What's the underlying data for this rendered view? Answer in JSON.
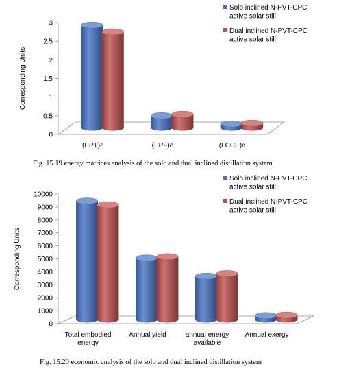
{
  "colors": {
    "series1": "#4472c4",
    "series2": "#c0504d"
  },
  "chart_data": [
    {
      "type": "bar",
      "caption": "Fig. 15.19 energy matrices analysis of the solo and dual inclined distillation system",
      "ylabel": "Corresponding Units",
      "categories": [
        "(EPT)e",
        "(EPF)e",
        "(LCCE)e"
      ],
      "ylim": [
        0,
        3
      ],
      "yticks": [
        "0",
        "0.5",
        "1",
        "1.5",
        "2",
        "2.5",
        "3"
      ],
      "legend_position": "top-right",
      "series": [
        {
          "name": "Solo inclined N-PVT-CPC active solar still",
          "legend_lines": [
            "Solo inclined N-PVT-CPC",
            "active solar still"
          ],
          "values": [
            2.75,
            0.32,
            0.1
          ]
        },
        {
          "name": "Dual inclined N-PVT-CPC active solar still",
          "legend_lines": [
            "Dual inclined N-PVT-CPC",
            "active solar still"
          ],
          "values": [
            2.57,
            0.36,
            0.12
          ]
        }
      ]
    },
    {
      "type": "bar",
      "caption": "Fig. 15.20 economic analysis of the solo and dual inclined distillation system",
      "ylabel": "Corresponding Units",
      "categories": [
        [
          "Total embodied",
          "energy"
        ],
        [
          "Annual yield"
        ],
        [
          "annual energy",
          "available"
        ],
        [
          "Annual exergy"
        ]
      ],
      "ylim": [
        0,
        10000
      ],
      "yticks": [
        "0",
        "1000",
        "2000",
        "3000",
        "4000",
        "5000",
        "6000",
        "7000",
        "8000",
        "9000",
        "10000"
      ],
      "legend_position": "top-right",
      "series": [
        {
          "name": "Solo inclined N-PVT-CPC active solar still",
          "legend_lines": [
            "Solo inclined N-PVT-CPC",
            "active solar still"
          ],
          "values": [
            9150,
            4750,
            3350,
            300
          ]
        },
        {
          "name": "Dual inclined N-PVT-CPC active solar still",
          "legend_lines": [
            "Dual inclined N-PVT-CPC",
            "active solar still"
          ],
          "values": [
            8850,
            4850,
            3550,
            340
          ]
        }
      ]
    }
  ]
}
